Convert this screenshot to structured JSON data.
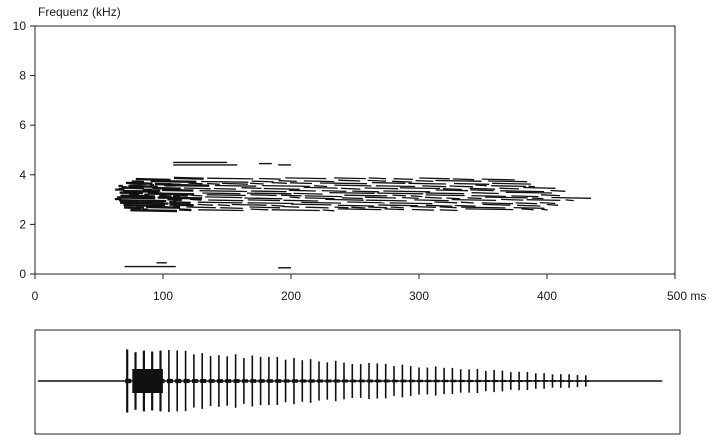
{
  "chart_data": [
    {
      "type": "spectrogram",
      "title": "",
      "ylabel": "Frequenz (kHz)",
      "xlabel": "",
      "x_unit": "ms",
      "x_ticks": [
        0,
        100,
        200,
        300,
        400,
        500
      ],
      "y_ticks": [
        0,
        2,
        4,
        6,
        8,
        10
      ],
      "xlim": [
        0,
        500
      ],
      "ylim": [
        0,
        10
      ],
      "grid": false,
      "ink_color": "#111111",
      "main_band": {
        "t_start": 62,
        "t_end": 440,
        "f_low": 2.6,
        "f_high": 3.85
      },
      "onset_dense_region": {
        "t_start": 62,
        "t_end": 110,
        "f_low": 2.6,
        "f_high": 3.7
      },
      "upper_fragments": [
        {
          "t_start": 108,
          "t_end": 150,
          "f": 4.5
        },
        {
          "t_start": 108,
          "t_end": 158,
          "f": 4.4
        },
        {
          "t_start": 175,
          "t_end": 185,
          "f": 4.45
        },
        {
          "t_start": 190,
          "t_end": 200,
          "f": 4.4
        }
      ],
      "low_fragments": [
        {
          "t_start": 70,
          "t_end": 110,
          "f": 0.3
        },
        {
          "t_start": 95,
          "t_end": 103,
          "f": 0.45
        },
        {
          "t_start": 190,
          "t_end": 200,
          "f": 0.25
        }
      ]
    },
    {
      "type": "waveform",
      "title": "",
      "xlim": [
        0,
        500
      ],
      "baseline_start": 0,
      "pulse_start": 70,
      "pulse_end": 430,
      "pulse_count": 56,
      "peak_amplitude": 1.0,
      "final_amplitude": 0.18,
      "ink_color": "#111111"
    }
  ]
}
